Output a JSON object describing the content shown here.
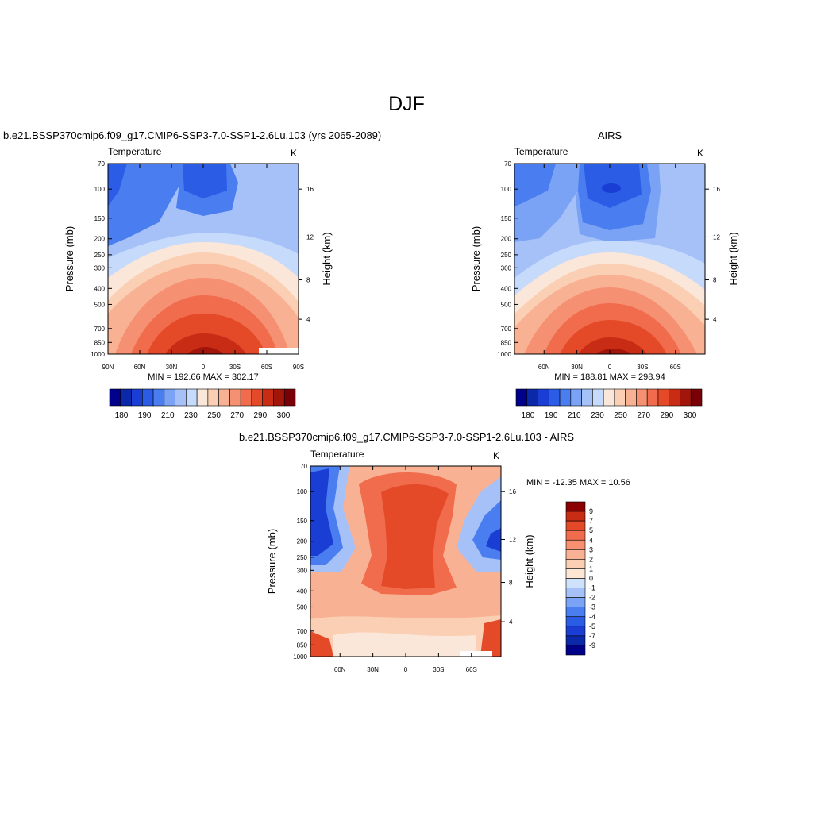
{
  "figure": {
    "title": "DJF"
  },
  "colors": {
    "temperature_levels": [
      "#00008b",
      "#0b28a8",
      "#1a3ed4",
      "#2b5ce6",
      "#4a7df0",
      "#7aa2f5",
      "#a5c1f8",
      "#c6dafb",
      "#fbe7da",
      "#fbcfb4",
      "#f8b193",
      "#f59172",
      "#f06c4c",
      "#e44a28",
      "#c92c15",
      "#a1150a",
      "#7a0008"
    ],
    "difference_levels": [
      "#00008b",
      "#0b28a8",
      "#1a3ed4",
      "#2b5ce6",
      "#4a7df0",
      "#7aa2f5",
      "#a5c1f8",
      "#cfe2fb",
      "#fde6d4",
      "#fbcfb4",
      "#f8b193",
      "#f59172",
      "#f06c4c",
      "#e44a28",
      "#c92c15",
      "#8b0000"
    ]
  },
  "chart_data": [
    {
      "type": "heatmap",
      "panel_title": "b.e21.BSSP370cmip6.f09_g17.CMIP6-SSP3-7.0-SSP1-2.6Lu.103 (yrs 2065-2089)",
      "variable": "Temperature",
      "units": "K",
      "xlabel": "",
      "ylabel": "Pressure (mb)",
      "y2label": "Height (km)",
      "x_ticks": [
        "90N",
        "60N",
        "30N",
        "0",
        "30S",
        "60S",
        "90S"
      ],
      "y_ticks": [
        "70",
        "100",
        "150",
        "200",
        "250",
        "300",
        "400",
        "500",
        "700",
        "850",
        "1000"
      ],
      "y2_ticks": [
        "16",
        "12",
        "8",
        "4"
      ],
      "min_label": "MIN = 192.66",
      "max_label": "MAX = 302.17",
      "min": 192.66,
      "max": 302.17,
      "colorbar_labels": [
        "180",
        "190",
        "210",
        "230",
        "250",
        "270",
        "290",
        "300"
      ]
    },
    {
      "type": "heatmap",
      "panel_title": "AIRS",
      "variable": "Temperature",
      "units": "K",
      "xlabel": "",
      "ylabel": "Pressure (mb)",
      "y2label": "Height (km)",
      "x_ticks": [
        "60N",
        "30N",
        "0",
        "30S",
        "60S"
      ],
      "y_ticks": [
        "70",
        "100",
        "150",
        "200",
        "250",
        "300",
        "400",
        "500",
        "700",
        "850",
        "1000"
      ],
      "y2_ticks": [
        "16",
        "12",
        "8",
        "4"
      ],
      "min_label": "MIN = 188.81",
      "max_label": "MAX = 298.94",
      "min": 188.81,
      "max": 298.94,
      "colorbar_labels": [
        "180",
        "190",
        "210",
        "230",
        "250",
        "270",
        "290",
        "300"
      ]
    },
    {
      "type": "heatmap",
      "panel_title": "b.e21.BSSP370cmip6.f09_g17.CMIP6-SSP3-7.0-SSP1-2.6Lu.103 - AIRS",
      "variable": "Temperature",
      "units": "K",
      "xlabel": "",
      "ylabel": "Pressure (mb)",
      "y2label": "Height (km)",
      "x_ticks": [
        "60N",
        "30N",
        "0",
        "30S",
        "60S"
      ],
      "y_ticks": [
        "70",
        "100",
        "150",
        "200",
        "250",
        "300",
        "400",
        "500",
        "700",
        "850",
        "1000"
      ],
      "y2_ticks": [
        "16",
        "12",
        "8",
        "4"
      ],
      "min_label": "MIN = -12.35",
      "max_label": "MAX =  10.56",
      "min": -12.35,
      "max": 10.56,
      "colorbar_labels": [
        "9",
        "7",
        "5",
        "4",
        "3",
        "2",
        "1",
        "0",
        "-1",
        "-2",
        "-3",
        "-4",
        "-5",
        "-7",
        "-9"
      ]
    }
  ]
}
